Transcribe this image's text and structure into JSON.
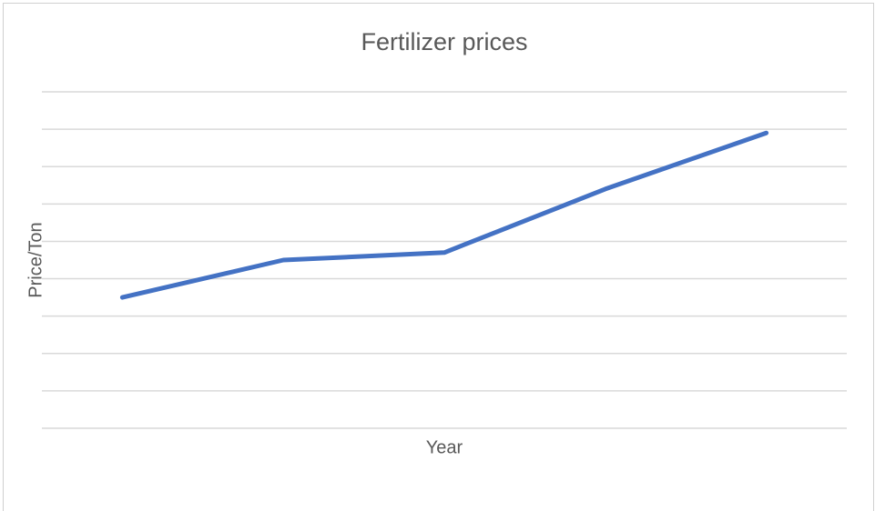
{
  "chart_data": {
    "type": "line",
    "title": "Fertilizer prices",
    "x_label": "Year",
    "y_label": "Price/Ton",
    "categories": [
      null,
      null,
      null,
      null,
      null
    ],
    "values": [
      3.5,
      4.5,
      4.7,
      6.4,
      7.9
    ],
    "color": "#4472c4",
    "ylim": [
      0,
      9
    ],
    "yticks": [
      0,
      1,
      2,
      3,
      4,
      5,
      6,
      7,
      8,
      9
    ],
    "grid": true
  }
}
